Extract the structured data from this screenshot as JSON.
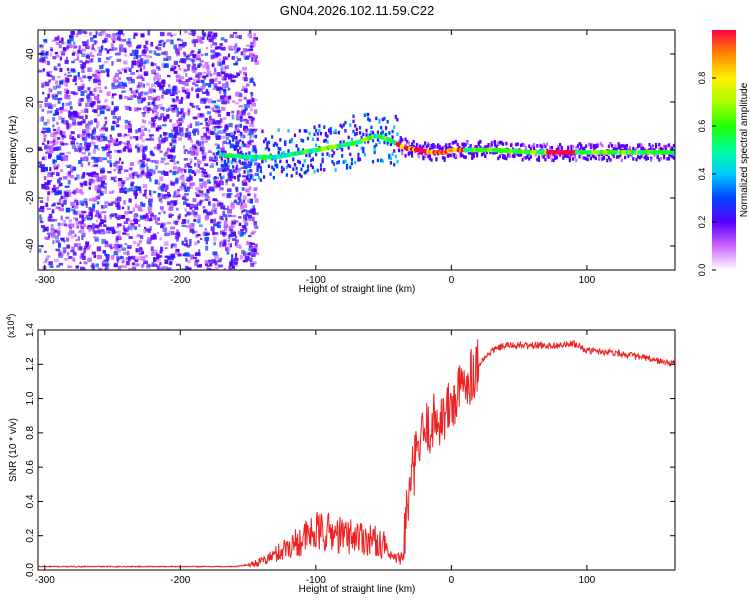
{
  "figure_title": "GN04.2026.102.11.59.C22",
  "colors": {
    "series": "#ee2222",
    "axis": "#000000"
  },
  "chart_data": [
    {
      "type": "heatmap",
      "title": "GN04.2026.102.11.59.C22",
      "xlabel": "Height of straight line (km)",
      "ylabel": "Frequency (Hz)",
      "xlim": [
        -305,
        165
      ],
      "ylim": [
        -50,
        50
      ],
      "x_ticks": [
        -300,
        -200,
        -100,
        0,
        100
      ],
      "x_tick_labels": [
        "-300",
        "-200",
        "-100",
        "0",
        "100"
      ],
      "y_ticks": [
        -40,
        -20,
        0,
        20,
        40
      ],
      "y_tick_labels": [
        "-40",
        "-20",
        "0",
        "20",
        "40"
      ],
      "colorbar": {
        "label": "Normalized spectral amplitude",
        "range": [
          0,
          1
        ],
        "ticks": [
          0.0,
          0.2,
          0.4,
          0.6,
          0.8
        ],
        "tick_labels": [
          "0.0",
          "0.2",
          "0.4",
          "0.6",
          "0.8"
        ]
      },
      "ridge": {
        "x": [
          -170,
          -150,
          -130,
          -110,
          -90,
          -70,
          -55,
          -45,
          -35,
          -25,
          -15,
          -5,
          0,
          10,
          30,
          60,
          75,
          90,
          100,
          130,
          165
        ],
        "y": [
          -2,
          -3,
          -3,
          -1,
          1,
          3,
          6,
          4,
          1,
          0,
          -1,
          -1,
          0,
          0,
          0,
          -1,
          -1,
          -1,
          -1,
          -1,
          -1
        ]
      }
    },
    {
      "type": "line",
      "xlabel": "Height of straight line (km)",
      "ylabel": "SNR (10 * v/v)",
      "y_multiplier": "(x10",
      "y_multiplier_exp": "4",
      "y_multiplier_close": ")",
      "xlim": [
        -305,
        165
      ],
      "ylim": [
        0,
        1.4
      ],
      "x_ticks": [
        -300,
        -200,
        -100,
        0,
        100
      ],
      "x_tick_labels": [
        "-300",
        "-200",
        "-100",
        "0",
        "100"
      ],
      "y_ticks": [
        0.0,
        0.2,
        0.4,
        0.6,
        0.8,
        1.0,
        1.2,
        1.4
      ],
      "y_tick_labels": [
        "0.0",
        "0.2",
        "0.4",
        "0.6",
        "0.8",
        "1.0",
        "1.2",
        "1.4"
      ],
      "series": [
        {
          "name": "SNR",
          "x": [
            -305,
            -250,
            -200,
            -160,
            -150,
            -140,
            -130,
            -120,
            -110,
            -100,
            -90,
            -80,
            -70,
            -60,
            -50,
            -45,
            -40,
            -35,
            -30,
            -25,
            -20,
            -15,
            -10,
            -5,
            0,
            5,
            10,
            20,
            30,
            40,
            60,
            80,
            90,
            100,
            120,
            140,
            165
          ],
          "y": [
            0.02,
            0.02,
            0.02,
            0.02,
            0.03,
            0.05,
            0.09,
            0.14,
            0.18,
            0.22,
            0.22,
            0.2,
            0.2,
            0.18,
            0.15,
            0.07,
            0.05,
            0.2,
            0.5,
            0.7,
            0.8,
            0.85,
            0.88,
            0.9,
            0.96,
            1.02,
            1.1,
            1.2,
            1.28,
            1.31,
            1.31,
            1.31,
            1.32,
            1.28,
            1.27,
            1.24,
            1.2
          ]
        }
      ]
    }
  ]
}
